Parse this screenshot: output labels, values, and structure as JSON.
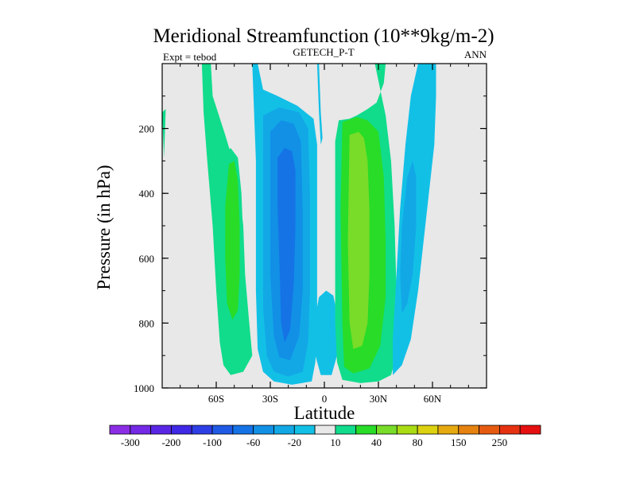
{
  "chart_data": {
    "type": "heatmap",
    "title": "Meridional Streamfunction (10**9kg/m-2)",
    "subtitle_left": "Expt = tebod",
    "subtitle_center": "GETECH_P-T",
    "subtitle_right": "ANN",
    "xlabel": "Latitude",
    "ylabel": "Pressure (in hPa)",
    "xlim": [
      -90,
      90
    ],
    "ylim": [
      1000,
      0
    ],
    "x_ticks": [
      {
        "value": -60,
        "label": "60S"
      },
      {
        "value": -30,
        "label": "30S"
      },
      {
        "value": 0,
        "label": "0"
      },
      {
        "value": 30,
        "label": "30N"
      },
      {
        "value": 60,
        "label": "60N"
      }
    ],
    "y_ticks": [
      {
        "value": 200,
        "label": "200"
      },
      {
        "value": 400,
        "label": "400"
      },
      {
        "value": 600,
        "label": "600"
      },
      {
        "value": 800,
        "label": "800"
      },
      {
        "value": 1000,
        "label": "1000"
      }
    ],
    "background_color": "#e8e8e8",
    "colorbar": {
      "colors": [
        "#8c2de6",
        "#7329e6",
        "#5a26e6",
        "#3f28e6",
        "#2e3ee6",
        "#1f5ae6",
        "#1573e6",
        "#1190e6",
        "#12a8e6",
        "#12c0e6",
        "#e8e8e8",
        "#10dc8c",
        "#28dc28",
        "#78dc28",
        "#aadc14",
        "#dcd210",
        "#e6aa10",
        "#e68210",
        "#e65a10",
        "#e63210",
        "#e61010"
      ],
      "labels": [
        "-300",
        "-200",
        "-100",
        "-60",
        "-20",
        "10",
        "40",
        "80",
        "150",
        "250"
      ]
    },
    "contours": [
      {
        "name": "nh-streamer-left",
        "level": 10,
        "color": "#10dc8c",
        "poly": [
          [
            -68,
            0
          ],
          [
            -63,
            0
          ],
          [
            -62,
            100
          ],
          [
            -55,
            220
          ],
          [
            -48,
            350
          ],
          [
            -45,
            500
          ],
          [
            -44,
            650
          ],
          [
            -42,
            780
          ],
          [
            -40,
            900
          ],
          [
            -45,
            950
          ],
          [
            -52,
            960
          ],
          [
            -56,
            930
          ],
          [
            -58,
            860
          ],
          [
            -60,
            700
          ],
          [
            -62,
            500
          ],
          [
            -65,
            300
          ],
          [
            -67,
            150
          ]
        ]
      },
      {
        "name": "wedge-left",
        "level": 10,
        "color": "#10dc8c",
        "poly": [
          [
            -90,
            150
          ],
          [
            -89,
            290
          ],
          [
            -88,
            140
          ]
        ]
      },
      {
        "name": "sh-cell-outer",
        "level": 10,
        "color": "#10dc8c",
        "poly": [
          [
            -55,
            280
          ],
          [
            -52,
            260
          ],
          [
            -48,
            290
          ],
          [
            -46,
            400
          ],
          [
            -45,
            550
          ],
          [
            -44,
            700
          ],
          [
            -44,
            800
          ],
          [
            -47,
            860
          ],
          [
            -52,
            870
          ],
          [
            -56,
            820
          ],
          [
            -57,
            650
          ],
          [
            -57,
            450
          ]
        ]
      },
      {
        "name": "sh-cell-inner",
        "level": 40,
        "color": "#28dc28",
        "poly": [
          [
            -53,
            310
          ],
          [
            -50,
            300
          ],
          [
            -48,
            360
          ],
          [
            -47,
            500
          ],
          [
            -47,
            650
          ],
          [
            -48,
            760
          ],
          [
            -51,
            790
          ],
          [
            -54,
            740
          ],
          [
            -55,
            600
          ],
          [
            -55,
            440
          ]
        ]
      },
      {
        "name": "neg-left-outer",
        "level": -20,
        "color": "#12c0e6",
        "poly": [
          [
            -40,
            0
          ],
          [
            -37,
            0
          ],
          [
            -34,
            80
          ],
          [
            -26,
            100
          ],
          [
            -15,
            130
          ],
          [
            -6,
            170
          ],
          [
            -4,
            250
          ],
          [
            -4,
            480
          ],
          [
            -4,
            800
          ],
          [
            -5,
            920
          ],
          [
            -7,
            980
          ],
          [
            -18,
            990
          ],
          [
            -28,
            980
          ],
          [
            -34,
            950
          ],
          [
            -37,
            880
          ],
          [
            -38,
            700
          ],
          [
            -38,
            500
          ],
          [
            -38,
            300
          ],
          [
            -39,
            150
          ]
        ]
      },
      {
        "name": "neg-left-2",
        "level": -60,
        "color": "#12a8e6",
        "poly": [
          [
            -34,
            160
          ],
          [
            -25,
            135
          ],
          [
            -14,
            150
          ],
          [
            -9,
            200
          ],
          [
            -8,
            400
          ],
          [
            -8,
            700
          ],
          [
            -9,
            860
          ],
          [
            -12,
            950
          ],
          [
            -20,
            965
          ],
          [
            -28,
            950
          ],
          [
            -32,
            900
          ],
          [
            -34,
            750
          ],
          [
            -34,
            450
          ]
        ]
      },
      {
        "name": "neg-left-3",
        "level": -100,
        "color": "#1190e6",
        "poly": [
          [
            -30,
            210
          ],
          [
            -24,
            175
          ],
          [
            -17,
            185
          ],
          [
            -13,
            240
          ],
          [
            -12,
            450
          ],
          [
            -12,
            700
          ],
          [
            -14,
            840
          ],
          [
            -19,
            915
          ],
          [
            -25,
            905
          ],
          [
            -28,
            840
          ],
          [
            -30,
            650
          ],
          [
            -30,
            400
          ]
        ]
      },
      {
        "name": "neg-left-4",
        "level": -200,
        "color": "#1573e6",
        "poly": [
          [
            -26,
            290
          ],
          [
            -22,
            260
          ],
          [
            -18,
            270
          ],
          [
            -16,
            330
          ],
          [
            -16,
            500
          ],
          [
            -17,
            680
          ],
          [
            -19,
            820
          ],
          [
            -22,
            860
          ],
          [
            -24,
            800
          ],
          [
            -25,
            600
          ],
          [
            -26,
            430
          ]
        ]
      },
      {
        "name": "dip-strip",
        "level": -20,
        "color": "#12c0e6",
        "poly": [
          [
            -4,
            0
          ],
          [
            -3,
            0
          ],
          [
            -2,
            150
          ],
          [
            -1,
            230
          ],
          [
            -2,
            250
          ],
          [
            -3,
            150
          ]
        ]
      },
      {
        "name": "dip-bump",
        "level": -20,
        "color": "#12c0e6",
        "poly": [
          [
            -3,
            720
          ],
          [
            1,
            700
          ],
          [
            5,
            715
          ],
          [
            7,
            770
          ],
          [
            7,
            900
          ],
          [
            4,
            960
          ],
          [
            -2,
            960
          ],
          [
            -5,
            900
          ],
          [
            -5,
            780
          ]
        ]
      },
      {
        "name": "pos-cell-outer",
        "level": 10,
        "color": "#10dc8c",
        "poly": [
          [
            28,
            0
          ],
          [
            34,
            0
          ],
          [
            33,
            60
          ],
          [
            29,
            120
          ],
          [
            24,
            140
          ],
          [
            18,
            160
          ],
          [
            14,
            170
          ],
          [
            8,
            175
          ],
          [
            6,
            240
          ],
          [
            6,
            500
          ],
          [
            6,
            800
          ],
          [
            7,
            920
          ],
          [
            10,
            975
          ],
          [
            20,
            985
          ],
          [
            30,
            980
          ],
          [
            37,
            960
          ],
          [
            40,
            900
          ],
          [
            40,
            700
          ],
          [
            39,
            500
          ],
          [
            37,
            300
          ],
          [
            34,
            160
          ]
        ]
      },
      {
        "name": "pos-cell-2",
        "level": 40,
        "color": "#28dc28",
        "poly": [
          [
            10,
            180
          ],
          [
            18,
            165
          ],
          [
            24,
            175
          ],
          [
            30,
            210
          ],
          [
            33,
            350
          ],
          [
            34,
            550
          ],
          [
            34,
            720
          ],
          [
            31,
            870
          ],
          [
            25,
            940
          ],
          [
            16,
            955
          ],
          [
            11,
            935
          ],
          [
            10,
            800
          ],
          [
            9,
            450
          ]
        ]
      },
      {
        "name": "pos-cell-3",
        "level": 80,
        "color": "#78dc28",
        "poly": [
          [
            14,
            220
          ],
          [
            19,
            210
          ],
          [
            22,
            230
          ],
          [
            24,
            300
          ],
          [
            25,
            450
          ],
          [
            25,
            650
          ],
          [
            24,
            800
          ],
          [
            21,
            870
          ],
          [
            16,
            880
          ],
          [
            14,
            800
          ],
          [
            13,
            550
          ]
        ]
      },
      {
        "name": "neg-right-outer",
        "level": -20,
        "color": "#12c0e6",
        "poly": [
          [
            55,
            0
          ],
          [
            62,
            0
          ],
          [
            62,
            100
          ],
          [
            61,
            250
          ],
          [
            58,
            400
          ],
          [
            55,
            550
          ],
          [
            52,
            700
          ],
          [
            48,
            850
          ],
          [
            43,
            930
          ],
          [
            38,
            960
          ],
          [
            38,
            850
          ],
          [
            40,
            650
          ],
          [
            42,
            450
          ],
          [
            45,
            250
          ],
          [
            48,
            100
          ],
          [
            52,
            0
          ]
        ]
      },
      {
        "name": "neg-right-inner",
        "level": -60,
        "color": "#12a8e6",
        "poly": [
          [
            46,
            350
          ],
          [
            49,
            300
          ],
          [
            51,
            350
          ],
          [
            51,
            500
          ],
          [
            49,
            650
          ],
          [
            46,
            740
          ],
          [
            43,
            770
          ],
          [
            42,
            650
          ],
          [
            43,
            500
          ]
        ]
      },
      {
        "name": "streak-1",
        "level": -20,
        "color": "#12c0e6",
        "poly": [
          [
            59,
            0
          ],
          [
            60,
            0
          ],
          [
            58,
            60
          ],
          [
            57,
            60
          ]
        ]
      },
      {
        "name": "streak-2",
        "level": -20,
        "color": "#12c0e6",
        "poly": [
          [
            57,
            0
          ],
          [
            57.6,
            0
          ],
          [
            56,
            50
          ],
          [
            55.4,
            50
          ]
        ]
      }
    ]
  }
}
